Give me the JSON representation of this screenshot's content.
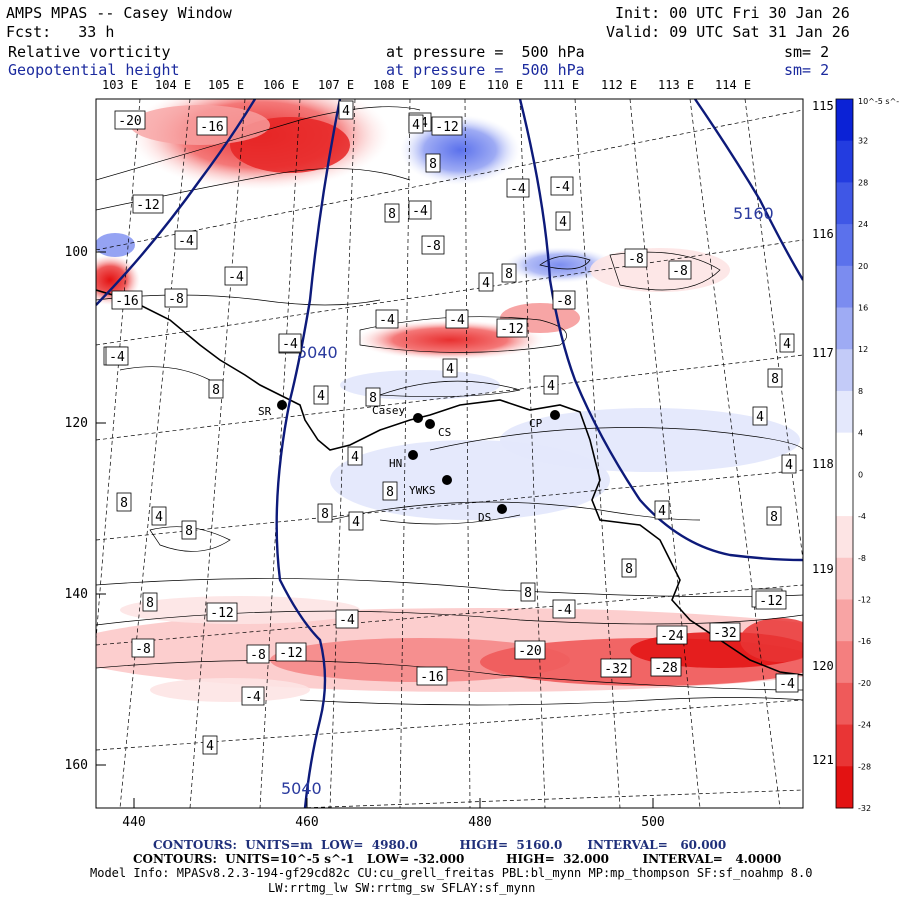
{
  "header": {
    "title": "AMPS MPAS -- Casey Window",
    "forecast": "Fcst:   33 h",
    "init": "Init: 00 UTC Fri 30 Jan 26",
    "valid": "Valid: 09 UTC Sat 31 Jan 26",
    "field1": {
      "name": "Relative vorticity",
      "pressure": "at pressure =  500 hPa",
      "sm": "sm= 2"
    },
    "field2": {
      "name": "Geopotential height",
      "pressure": "at pressure =  500 hPa",
      "sm": "sm= 2"
    }
  },
  "top_longitudes": [
    "103 E",
    "104 E",
    "105 E",
    "106 E",
    "107 E",
    "108 E",
    "109 E",
    "110 E",
    "111 E",
    "112 E",
    "113 E",
    "114 E"
  ],
  "right_longitudes": [
    "115 E",
    "116 E",
    "117 E",
    "118 E",
    "119 E",
    "120 E",
    "121 E"
  ],
  "x_ticks": [
    "440",
    "460",
    "480",
    "500"
  ],
  "y_ticks": [
    "100",
    "120",
    "140",
    "160"
  ],
  "colorbar": {
    "unit": "10^-5 s^-1",
    "labels": [
      "32",
      "28",
      "24",
      "20",
      "16",
      "12",
      "8",
      "4",
      "0",
      "-4",
      "-8",
      "-12",
      "-16",
      "-20",
      "-24",
      "-28",
      "-32"
    ],
    "colors": [
      "#0b22d6",
      "#233ce0",
      "#3f57e6",
      "#5b71ec",
      "#7b8cf0",
      "#9eabf4",
      "#c3cbf8",
      "#e4e8fc",
      "#ffffff",
      "#ffffff",
      "#fde4e4",
      "#fbc6c6",
      "#f8a4a4",
      "#f47f7f",
      "#ef5a5a",
      "#e93535",
      "#e31212"
    ]
  },
  "stations": [
    {
      "name": "SR"
    },
    {
      "name": "Casey"
    },
    {
      "name": "CS"
    },
    {
      "name": "CP"
    },
    {
      "name": "HN"
    },
    {
      "name": "YWKS"
    },
    {
      "name": "DS"
    }
  ],
  "height_labels": [
    "5160",
    "5040",
    "5040"
  ],
  "vorticity_labels": [
    "-20",
    "-16",
    "-12",
    "-4",
    "-16",
    "-8",
    "-4",
    "4",
    "-4",
    "8",
    "-12",
    "8",
    "4",
    "-4",
    "-4",
    "4",
    "-8",
    "-8",
    "-8",
    "-4",
    "4",
    "8",
    "-8",
    "-4",
    "-12",
    "-8",
    "-4",
    "-4",
    "-4",
    "-4",
    "8",
    "4",
    "8",
    "4",
    "4",
    "4",
    "8",
    "4",
    "4",
    "8",
    "8",
    "4",
    "8",
    "8",
    "4",
    "8",
    "8",
    "4",
    "8",
    "4",
    "8",
    "-4",
    "-4",
    "-8",
    "-8",
    "-12",
    "-12",
    "-16",
    "-20",
    "-24",
    "-32",
    "-32",
    "-28",
    "-12",
    "-4",
    "-4",
    "4",
    "-12"
  ],
  "footer": {
    "line1": "CONTOURS:  UNITS=m  LOW=  4980.0          HIGH=  5160.0      INTERVAL=   60.000",
    "line2": "CONTOURS:  UNITS=10^-5 s^-1   LOW= -32.000          HIGH=  32.000        INTERVAL=   4.0000",
    "line3": "Model Info: MPASv8.2.3-194-gf29cd82c CU:cu_grell_freitas PBL:bl_mynn MP:mp_thompson SF:sf_noahmp 8.0",
    "line4": "LW:rrtmg_lw SW:rrtmg_sw SFLAY:sf_mynn"
  }
}
